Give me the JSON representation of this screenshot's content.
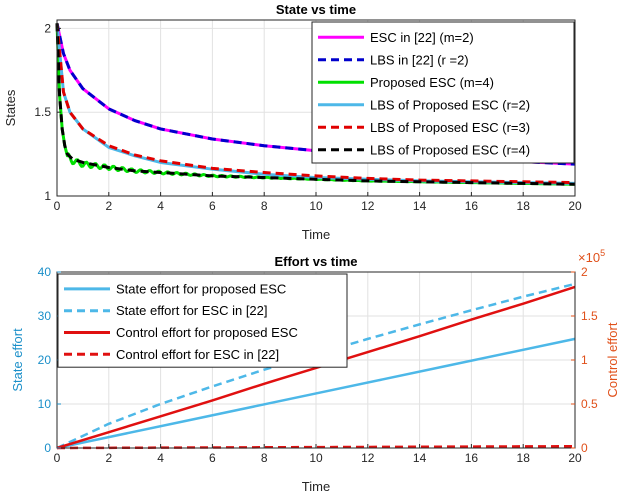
{
  "chart_data": [
    {
      "type": "line",
      "title": "State vs time",
      "xlabel": "Time",
      "ylabel": "States",
      "xlim": [
        0,
        20
      ],
      "ylim": [
        1,
        2.05
      ],
      "xticks": [
        "0",
        "2",
        "4",
        "6",
        "8",
        "10",
        "12",
        "14",
        "16",
        "18",
        "20"
      ],
      "yticks": [
        "1",
        "1.5",
        "2"
      ],
      "grid": true,
      "legend_position": "top-right",
      "series": [
        {
          "name": "ESC in [22] (m=2)",
          "color": "#ff00ff",
          "style": "solid",
          "x": [
            0,
            0.25,
            0.5,
            1,
            2,
            3,
            4,
            6,
            8,
            10,
            12,
            14,
            16,
            18,
            20
          ],
          "y": [
            2.03,
            1.85,
            1.75,
            1.64,
            1.52,
            1.45,
            1.4,
            1.34,
            1.3,
            1.27,
            1.25,
            1.235,
            1.22,
            1.205,
            1.19
          ]
        },
        {
          "name": "LBS in [22] (r =2)",
          "color": "#0000cc",
          "style": "dashed",
          "x": [
            0,
            0.25,
            0.5,
            1,
            2,
            3,
            4,
            6,
            8,
            10,
            12,
            14,
            16,
            18,
            20
          ],
          "y": [
            2.03,
            1.85,
            1.75,
            1.64,
            1.52,
            1.45,
            1.4,
            1.34,
            1.3,
            1.27,
            1.25,
            1.235,
            1.22,
            1.205,
            1.19
          ]
        },
        {
          "name": "Proposed ESC (m=4)",
          "color": "#00e000",
          "style": "solid",
          "x": [
            0,
            0.1,
            0.2,
            0.3,
            0.4,
            0.6,
            1,
            2,
            3,
            4,
            6,
            8,
            10,
            12,
            14,
            16,
            18,
            20
          ],
          "y": [
            2.03,
            1.6,
            1.4,
            1.3,
            1.24,
            1.21,
            1.19,
            1.17,
            1.15,
            1.14,
            1.12,
            1.11,
            1.1,
            1.09,
            1.085,
            1.08,
            1.075,
            1.07
          ]
        },
        {
          "name": "LBS of Proposed ESC (r=2)",
          "color": "#4db8e8",
          "style": "solid",
          "x": [
            0,
            0.25,
            0.5,
            1,
            2,
            3,
            4,
            6,
            8,
            10,
            12,
            14,
            16,
            18,
            20
          ],
          "y": [
            2.03,
            1.62,
            1.5,
            1.4,
            1.29,
            1.24,
            1.2,
            1.16,
            1.13,
            1.11,
            1.1,
            1.09,
            1.085,
            1.08,
            1.075
          ]
        },
        {
          "name": "LBS of Proposed ESC (r=3)",
          "color": "#e00000",
          "style": "dashed",
          "x": [
            0,
            0.25,
            0.5,
            1,
            2,
            3,
            4,
            6,
            8,
            10,
            12,
            14,
            16,
            18,
            20
          ],
          "y": [
            2.03,
            1.62,
            1.5,
            1.4,
            1.3,
            1.245,
            1.21,
            1.165,
            1.14,
            1.12,
            1.105,
            1.095,
            1.09,
            1.085,
            1.08
          ]
        },
        {
          "name": "LBS of Proposed ESC (r=4)",
          "color": "#000000",
          "style": "dashed",
          "x": [
            0,
            0.1,
            0.2,
            0.3,
            0.4,
            0.6,
            1,
            2,
            3,
            4,
            6,
            8,
            10,
            12,
            14,
            16,
            18,
            20
          ],
          "y": [
            2.03,
            1.6,
            1.4,
            1.3,
            1.25,
            1.22,
            1.2,
            1.17,
            1.15,
            1.14,
            1.12,
            1.11,
            1.1,
            1.09,
            1.085,
            1.08,
            1.075,
            1.07
          ]
        }
      ]
    },
    {
      "type": "line",
      "title": "Effort vs time",
      "xlabel": "Time",
      "ylabel": "State effort",
      "ylabel_right": "Control effort",
      "right_axis_exponent": "×10^5",
      "xlim": [
        0,
        20
      ],
      "ylim": [
        0,
        40
      ],
      "ylim_right": [
        0,
        2
      ],
      "xticks": [
        "0",
        "2",
        "4",
        "6",
        "8",
        "10",
        "12",
        "14",
        "16",
        "18",
        "20"
      ],
      "yticks": [
        "0",
        "10",
        "20",
        "30",
        "40"
      ],
      "yticks_right": [
        "0",
        "0.5",
        "1",
        "1.5",
        "2"
      ],
      "grid": true,
      "legend_position": "top-left",
      "series": [
        {
          "name": "State effort for proposed ESC",
          "axis": "left",
          "color": "#4db8e8",
          "style": "solid",
          "x": [
            0,
            5,
            10,
            15,
            20
          ],
          "y": [
            0,
            6.2,
            12.4,
            18.6,
            24.8
          ]
        },
        {
          "name": "State effort for ESC in [22]",
          "axis": "left",
          "color": "#4db8e8",
          "style": "dashed",
          "x": [
            0,
            2,
            4,
            6,
            8,
            10,
            12,
            14,
            16,
            18,
            20
          ],
          "y": [
            0,
            5.5,
            10,
            14,
            17.8,
            21.3,
            24.8,
            28.1,
            31.3,
            34.4,
            37.3
          ]
        },
        {
          "name": "Control effort for proposed ESC",
          "axis": "right",
          "color": "#e01010",
          "style": "solid",
          "x": [
            0,
            2,
            4,
            6,
            8,
            10,
            12,
            14,
            16,
            18,
            20
          ],
          "y": [
            0,
            0.18,
            0.36,
            0.54,
            0.73,
            0.91,
            1.09,
            1.27,
            1.46,
            1.64,
            1.83
          ]
        },
        {
          "name": "Control effort for ESC in [22]",
          "axis": "right",
          "color": "#e01010",
          "style": "dashed",
          "x": [
            0,
            5,
            10,
            15,
            20
          ],
          "y": [
            0,
            0.005,
            0.01,
            0.015,
            0.02
          ]
        }
      ]
    }
  ]
}
